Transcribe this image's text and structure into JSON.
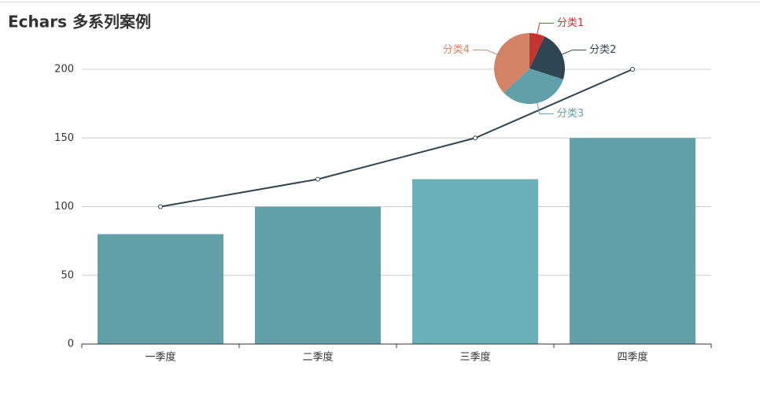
{
  "chart_data": [
    {
      "type": "bar",
      "title": "Echars 多系列案例",
      "categories": [
        "一季度",
        "二季度",
        "三季度",
        "四季度"
      ],
      "series": [
        {
          "type": "bar",
          "values": [
            80,
            100,
            120,
            150
          ],
          "colors": [
            "#61a0a8",
            "#61a0a8",
            "#6ab0b8",
            "#61a0a8"
          ]
        },
        {
          "type": "line",
          "values": [
            100,
            120,
            150,
            200
          ],
          "color": "#2f4554"
        }
      ],
      "ylim": [
        0,
        200
      ],
      "yticks": [
        0,
        50,
        100,
        150,
        200
      ],
      "grid": true
    },
    {
      "type": "pie",
      "categories": [
        "分类1",
        "分类2",
        "分类3",
        "分类4"
      ],
      "values": [
        7,
        23,
        33,
        37
      ],
      "colors": [
        "#c23531",
        "#2f4554",
        "#61a0a8",
        "#d48265"
      ]
    }
  ]
}
